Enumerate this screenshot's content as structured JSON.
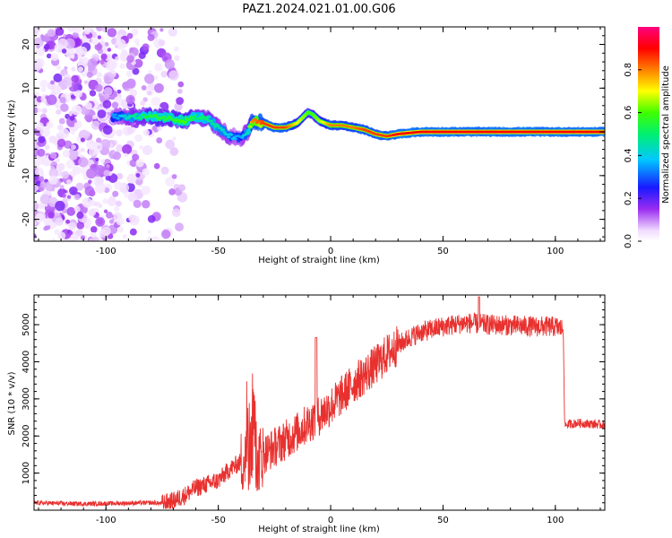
{
  "title": "PAZ1.2024.021.01.00.G06",
  "chart_data": [
    {
      "type": "heatmap",
      "title": "PAZ1.2024.021.01.00.G06",
      "xlabel": "Height of straight line (km)",
      "ylabel": "Frequency (Hz)",
      "xlim": [
        -132,
        122
      ],
      "ylim": [
        -25,
        24
      ],
      "xticks": [
        -100,
        -50,
        0,
        50,
        100
      ],
      "yticks": [
        20,
        10,
        0,
        -10,
        -20
      ],
      "colorbar": {
        "label": "Normalized spectral amplitude",
        "range": [
          0.0,
          1.0
        ],
        "ticks": [
          "0.0",
          "0.2",
          "0.4",
          "0.6",
          "0.8"
        ],
        "colormap": "white-purple-blue-cyan-green-yellow-red-magenta"
      },
      "ridge": {
        "description_points_x": [
          -95,
          -90,
          -80,
          -70,
          -65,
          -60,
          -55,
          -50,
          -45,
          -40,
          -37,
          -35,
          -30,
          -25,
          -20,
          -15,
          -10,
          -8,
          -5,
          0,
          5,
          10,
          15,
          20,
          25,
          30,
          40,
          60,
          80,
          100,
          120
        ],
        "frequency_hz": [
          3.5,
          3.5,
          3.5,
          3,
          2.5,
          3.5,
          3,
          1,
          -1,
          -1.5,
          0,
          2.5,
          2,
          1,
          1,
          2,
          4.5,
          4,
          2.5,
          1.5,
          1.5,
          1,
          0.5,
          -0.5,
          -1,
          -0.5,
          0,
          0,
          0,
          0,
          0
        ],
        "amplitude": [
          0.35,
          0.45,
          0.55,
          0.55,
          0.6,
          0.5,
          0.5,
          0.45,
          0.4,
          0.35,
          0.45,
          0.8,
          0.85,
          0.85,
          0.85,
          0.7,
          0.6,
          0.6,
          0.65,
          0.8,
          0.8,
          0.8,
          0.85,
          0.85,
          0.85,
          0.9,
          0.9,
          0.9,
          0.9,
          0.9,
          0.9
        ]
      },
      "noise_region_x": [
        -132,
        -72
      ]
    },
    {
      "type": "line",
      "xlabel": "Height of straight line (km)",
      "ylabel": "SNR (10 * v/v)",
      "xlim": [
        -132,
        122
      ],
      "ylim": [
        0,
        5800
      ],
      "xticks": [
        -100,
        -50,
        0,
        50,
        100
      ],
      "yticks": [
        1000,
        2000,
        3000,
        4000,
        5000
      ],
      "color": "#e8312f",
      "series": [
        {
          "x": [
            -132,
            -110,
            -90,
            -80,
            -75,
            -70,
            -65,
            -60,
            -55,
            -50,
            -45,
            -40,
            -37,
            -35,
            -33,
            -30,
            -25,
            -20,
            -15,
            -10,
            -5,
            0,
            5,
            10,
            15,
            20,
            25,
            30,
            35,
            40,
            50,
            60,
            70,
            80,
            90,
            100,
            103.5,
            104,
            110,
            122
          ],
          "values": [
            200,
            170,
            190,
            200,
            180,
            250,
            400,
            600,
            700,
            800,
            1100,
            1300,
            1400,
            1600,
            1300,
            1500,
            1700,
            1900,
            2100,
            2350,
            2550,
            2800,
            3100,
            3400,
            3650,
            3900,
            4200,
            4450,
            4650,
            4800,
            4950,
            5050,
            5000,
            4980,
            4950,
            4950,
            4880,
            2300,
            2350,
            2300
          ]
        }
      ]
    }
  ]
}
